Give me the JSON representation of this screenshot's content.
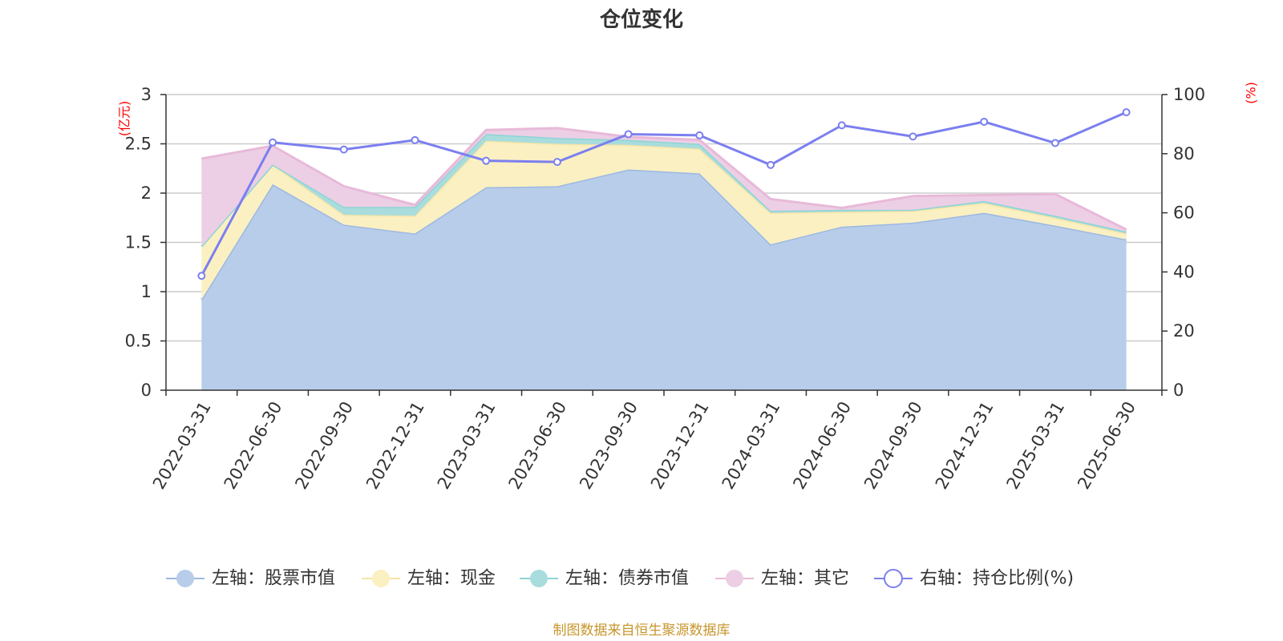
{
  "chart_data": {
    "type": "area",
    "title": "仓位变化",
    "categories": [
      "2022-03-31",
      "2022-06-30",
      "2022-09-30",
      "2022-12-31",
      "2023-03-31",
      "2023-06-30",
      "2023-09-30",
      "2023-12-31",
      "2024-03-31",
      "2024-06-30",
      "2024-09-30",
      "2024-12-31",
      "2025-03-31",
      "2025-06-30"
    ],
    "left_axis": {
      "unit": "(亿元)",
      "ylim": [
        0,
        3
      ],
      "ticks": [
        "0",
        "0.5",
        "1",
        "1.5",
        "2",
        "2.5",
        "3"
      ]
    },
    "right_axis": {
      "unit": "(%)",
      "ylim": [
        0,
        100
      ],
      "ticks": [
        "0",
        "20",
        "40",
        "60",
        "80",
        "100"
      ]
    },
    "grid": true,
    "legend_position": "bottom",
    "stacked_series": [
      {
        "name": "左轴：股票市值",
        "color": "#9cb8e2",
        "fill": "#b8cdea",
        "values": [
          0.92,
          2.09,
          1.68,
          1.59,
          2.06,
          2.07,
          2.24,
          2.2,
          1.48,
          1.66,
          1.7,
          1.8,
          1.67,
          1.53
        ]
      },
      {
        "name": "左轴：现金",
        "color": "#f6e5a8",
        "fill": "#fbf0c2",
        "values": [
          0.54,
          0.2,
          0.1,
          0.18,
          0.47,
          0.43,
          0.25,
          0.25,
          0.32,
          0.15,
          0.12,
          0.1,
          0.08,
          0.06
        ]
      },
      {
        "name": "左轴：债券市值",
        "color": "#8ed4d5",
        "fill": "#a9dcdc",
        "values": [
          0,
          0,
          0.08,
          0.09,
          0.07,
          0.06,
          0.05,
          0.05,
          0.02,
          0.02,
          0.01,
          0.02,
          0.02,
          0.02
        ]
      },
      {
        "name": "左轴：其它",
        "color": "#e8b9d9",
        "fill": "#eccfe5",
        "values": [
          0.89,
          0.19,
          0.21,
          0.02,
          0.04,
          0.1,
          0.03,
          0.04,
          0.12,
          0.02,
          0.14,
          0.06,
          0.22,
          0.02
        ]
      }
    ],
    "line_series": {
      "name": "右轴：持仓比例(%)",
      "color": "#7b7ff0",
      "values": [
        38.7,
        83.8,
        81.4,
        84.6,
        77.6,
        77.2,
        86.6,
        86.2,
        76.2,
        89.6,
        85.8,
        90.8,
        83.6,
        94.0
      ]
    }
  },
  "source_text": "制图数据来自恒生聚源数据库"
}
